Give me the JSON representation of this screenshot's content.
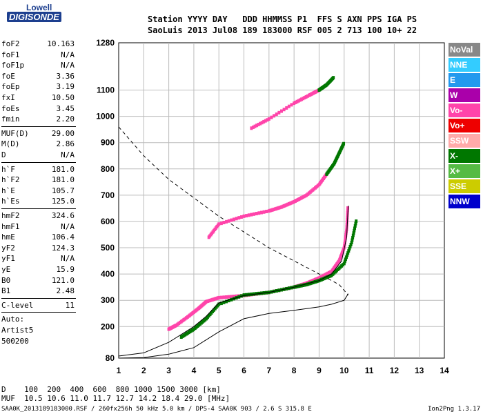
{
  "logo": {
    "line1": "Lowell",
    "line2": "DIGISONDE"
  },
  "header": {
    "line1": "Station YYYY DAY   DDD HHMMSS P1  FFS S AXN PPS IGA PS",
    "line2": "SaoLuis 2013 Jul08 189 183000 RSF 005 2 713 100 10+ 22"
  },
  "params": [
    {
      "label": "foF2",
      "value": "10.163"
    },
    {
      "label": "foF1",
      "value": "N/A"
    },
    {
      "label": "foF1p",
      "value": "N/A"
    },
    {
      "label": "foE",
      "value": "3.36"
    },
    {
      "label": "foEp",
      "value": "3.19"
    },
    {
      "label": "fxI",
      "value": "10.50"
    },
    {
      "label": "foEs",
      "value": "3.45"
    },
    {
      "label": "fmin",
      "value": "2.20"
    },
    {
      "label": "MUF(D)",
      "value": "29.00"
    },
    {
      "label": "M(D)",
      "value": "2.86"
    },
    {
      "label": "D",
      "value": "N/A"
    },
    {
      "label": "h`F",
      "value": "181.0"
    },
    {
      "label": "h`F2",
      "value": "181.0"
    },
    {
      "label": "h`E",
      "value": "105.7"
    },
    {
      "label": "h`Es",
      "value": "125.0"
    },
    {
      "label": "hmF2",
      "value": "324.6"
    },
    {
      "label": "hmF1",
      "value": "N/A"
    },
    {
      "label": "hmE",
      "value": "106.4"
    },
    {
      "label": "yF2",
      "value": "124.3"
    },
    {
      "label": "yF1",
      "value": "N/A"
    },
    {
      "label": "yE",
      "value": "15.9"
    },
    {
      "label": "B0",
      "value": "121.0"
    },
    {
      "label": "B1",
      "value": "2.48"
    },
    {
      "label": "C-level",
      "value": "11"
    },
    {
      "label": "Auto:",
      "value": ""
    },
    {
      "label": "Artist5",
      "value": ""
    },
    {
      "label": "500200",
      "value": ""
    }
  ],
  "legend": [
    {
      "label": "NoVal",
      "color": "#888888"
    },
    {
      "label": "NNE",
      "color": "#33ccff"
    },
    {
      "label": "E",
      "color": "#2299ee"
    },
    {
      "label": "W",
      "color": "#aa00aa"
    },
    {
      "label": "Vo-",
      "color": "#ff44aa"
    },
    {
      "label": "Vo+",
      "color": "#ee0000"
    },
    {
      "label": "SSW",
      "color": "#ffaaaa"
    },
    {
      "label": "X-",
      "color": "#007700"
    },
    {
      "label": "X+",
      "color": "#55bb44"
    },
    {
      "label": "SSE",
      "color": "#cccc00"
    },
    {
      "label": "NNW",
      "color": "#0000cc"
    }
  ],
  "footer": {
    "d_row": "D    100  200  400  600  800 1000 1500 3000 [km]",
    "muf_row": "MUF  10.5 10.6 11.0 11.7 12.7 14.2 18.4 29.0 [MHz]",
    "file_info": "SAA0K_2013189183000.RSF / 260fx256h 50 kHz 5.0 km / DPS-4 SAA0K 903 / 2.6 S 315.8 E",
    "version": "Ion2Png 1.3.17"
  },
  "chart_data": {
    "type": "scatter",
    "title": "",
    "xlabel": "",
    "ylabel": "",
    "xlim": [
      1,
      14
    ],
    "ylim": [
      80,
      1280
    ],
    "x_ticks": [
      1,
      2,
      3,
      4,
      5,
      6,
      7,
      8,
      9,
      10,
      11,
      12,
      13,
      14
    ],
    "y_ticks": [
      80,
      200,
      300,
      400,
      500,
      600,
      700,
      800,
      900,
      1000,
      1100,
      1280
    ],
    "grid": true,
    "series": [
      {
        "name": "Vo-",
        "color": "#ff44aa",
        "x": [
          3.0,
          3.3,
          3.8,
          4.2,
          4.5,
          5.0,
          6.0,
          7.0,
          8.0,
          8.5,
          9.0,
          9.5,
          9.8,
          10.0,
          10.1,
          10.15
        ],
        "y": [
          190,
          205,
          240,
          270,
          295,
          310,
          318,
          330,
          350,
          365,
          385,
          410,
          450,
          500,
          570,
          660
        ]
      },
      {
        "name": "X-",
        "color": "#007700",
        "x": [
          3.5,
          4.0,
          4.5,
          5.0,
          6.0,
          7.0,
          8.0,
          8.5,
          9.0,
          9.5,
          10.0,
          10.3,
          10.5
        ],
        "y": [
          160,
          190,
          230,
          285,
          320,
          330,
          350,
          360,
          375,
          395,
          440,
          520,
          610
        ]
      },
      {
        "name": "Vo-",
        "color": "#ff44aa",
        "x": [
          4.6,
          5.0,
          6.0,
          7.0,
          7.5,
          8.0,
          8.5,
          9.0,
          9.3
        ],
        "y": [
          540,
          590,
          620,
          640,
          655,
          675,
          700,
          740,
          780
        ]
      },
      {
        "name": "X-",
        "color": "#007700",
        "x": [
          9.3,
          9.6,
          9.8,
          10.0
        ],
        "y": [
          780,
          820,
          860,
          900
        ]
      },
      {
        "name": "Vo-",
        "color": "#ff44aa",
        "x": [
          6.3,
          7.0,
          8.0,
          8.6,
          9.0
        ],
        "y": [
          955,
          990,
          1050,
          1080,
          1100
        ]
      },
      {
        "name": "X-",
        "color": "#007700",
        "x": [
          9.0,
          9.3,
          9.6
        ],
        "y": [
          1100,
          1120,
          1150
        ]
      }
    ],
    "profile": {
      "x": [
        1.0,
        2.0,
        3.0,
        4.0,
        5.0,
        6.0,
        7.0,
        8.0,
        9.0,
        9.5,
        10.0,
        10.163
      ],
      "y": [
        80,
        82,
        95,
        120,
        180,
        230,
        250,
        262,
        275,
        285,
        300,
        325
      ]
    },
    "trace": {
      "x": [
        1.0,
        2.0,
        3.0,
        4.0,
        4.5,
        5.0,
        6.0,
        7.0,
        8.0,
        9.0,
        9.5,
        9.9,
        10.1,
        10.163
      ],
      "y": [
        88,
        100,
        140,
        200,
        240,
        290,
        318,
        330,
        350,
        375,
        400,
        450,
        540,
        660
      ]
    },
    "muf_curve": {
      "x": [
        1.0,
        2.0,
        3.0,
        4.0,
        5.0,
        6.0,
        7.0,
        8.0,
        9.0,
        9.8,
        10.163
      ],
      "y": [
        960,
        850,
        760,
        690,
        620,
        560,
        500,
        450,
        400,
        360,
        320
      ]
    }
  }
}
